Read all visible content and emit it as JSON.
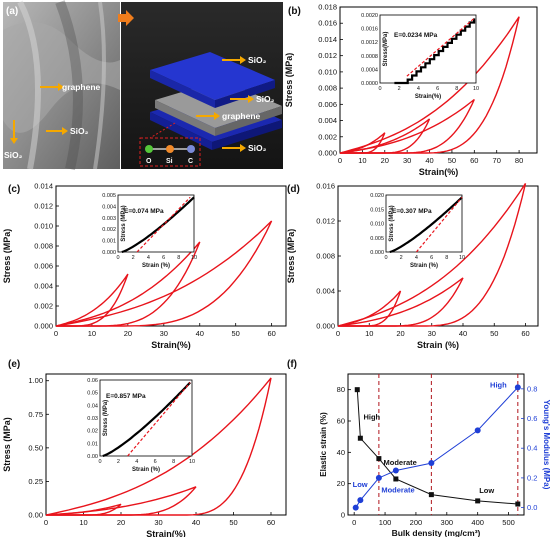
{
  "panel_a": {
    "label": "(a)",
    "labels": {
      "sem_graphene": "graphene",
      "sem_sio2_right": "SiO₂",
      "sem_sio2_left": "SiO₂",
      "model_sio2_top": "SiO₂",
      "model_graphene": "graphene",
      "model_sio2_mid": "SiO₂",
      "model_sio2_bottom": "SiO₂",
      "atom_o": "O",
      "atom_si": "Si",
      "atom_c": "C"
    },
    "colors": {
      "slab": "#2233cc",
      "graphene": "#8a8a8a",
      "arrow": "#f5a800",
      "o": "#55c83a",
      "si": "#f08a2a",
      "c": "#7a8ad8"
    }
  },
  "chart_data": [
    {
      "id": "b",
      "panel_label": "(b)",
      "type": "line",
      "xlabel": "Strain(%)",
      "ylabel": "Stress (MPa)",
      "xlim": [
        0,
        88
      ],
      "ylim": [
        0,
        0.018
      ],
      "xticks": [
        0,
        10,
        20,
        30,
        40,
        50,
        60,
        70,
        80
      ],
      "yticks": [
        0.0,
        0.002,
        0.004,
        0.006,
        0.008,
        0.01,
        0.012,
        0.014,
        0.016,
        0.018
      ],
      "ytick_labels": [
        "0.000",
        "0.002",
        "0.004",
        "0.006",
        "0.008",
        "0.010",
        "0.012",
        "0.014",
        "0.016",
        "0.018"
      ],
      "color": "#e8141c",
      "loops": [
        {
          "max_strain": 20,
          "max_stress": 0.0025,
          "residual": 9
        },
        {
          "max_strain": 40,
          "max_stress": 0.0042,
          "residual": 18
        },
        {
          "max_strain": 60,
          "max_stress": 0.0066,
          "residual": 26
        },
        {
          "max_strain": 80,
          "max_stress": 0.0168,
          "residual": 36
        }
      ],
      "inset": {
        "xlabel": "Strain(%)",
        "ylabel": "Stress(MPa)",
        "annotation": "E=0.0234 MPa",
        "xlim": [
          0,
          10
        ],
        "ylim": [
          0,
          0.002
        ],
        "xticks": [
          0,
          2,
          4,
          6,
          8,
          10
        ],
        "yticks": [
          0.0,
          0.0004,
          0.0008,
          0.0012,
          0.0016,
          0.002
        ],
        "ytick_labels": [
          "0.0000",
          "0.0004",
          "0.0008",
          "0.0012",
          "0.0016",
          "0.0020"
        ],
        "data_start": 1.5,
        "data_end": [
          9.8,
          0.0019
        ],
        "fit": [
          [
            2.8,
            0.0002
          ],
          [
            9.8,
            0.0019
          ]
        ],
        "stepped": true
      }
    },
    {
      "id": "c",
      "panel_label": "(c)",
      "type": "line",
      "xlabel": "Strain(%)",
      "ylabel": "Stress (MPa)",
      "xlim": [
        0,
        64
      ],
      "ylim": [
        0,
        0.014
      ],
      "xticks": [
        0,
        10,
        20,
        30,
        40,
        50,
        60
      ],
      "yticks": [
        0.0,
        0.002,
        0.004,
        0.006,
        0.008,
        0.01,
        0.012,
        0.014
      ],
      "ytick_labels": [
        "0.000",
        "0.002",
        "0.004",
        "0.006",
        "0.008",
        "0.010",
        "0.012",
        "0.014"
      ],
      "color": "#e8141c",
      "loops": [
        {
          "max_strain": 20,
          "max_stress": 0.0052,
          "residual": 4
        },
        {
          "max_strain": 40,
          "max_stress": 0.0084,
          "residual": 10
        },
        {
          "max_strain": 60,
          "max_stress": 0.0105,
          "residual": 16
        }
      ],
      "inset": {
        "xlabel": "Strain (%)",
        "ylabel": "Stress (MPa)",
        "annotation": "E=0.074 MPa",
        "xlim": [
          0,
          10
        ],
        "ylim": [
          0,
          0.005
        ],
        "xticks": [
          0,
          2,
          4,
          6,
          8,
          10
        ],
        "yticks": [
          0.0,
          0.001,
          0.002,
          0.003,
          0.004,
          0.005
        ],
        "ytick_labels": [
          "0.000",
          "0.001",
          "0.002",
          "0.003",
          "0.004",
          "0.005"
        ],
        "data_start": 0.5,
        "data_end": [
          10,
          0.0048
        ],
        "fit": [
          [
            2.5,
            0.0
          ],
          [
            9.5,
            0.0048
          ]
        ],
        "stepped": false
      }
    },
    {
      "id": "d",
      "panel_label": "(d)",
      "type": "line",
      "xlabel": "Strain (%)",
      "ylabel": "Stress (MPa)",
      "xlim": [
        0,
        64
      ],
      "ylim": [
        0,
        0.016
      ],
      "xticks": [
        0,
        10,
        20,
        30,
        40,
        50,
        60
      ],
      "yticks": [
        0.0,
        0.004,
        0.008,
        0.012,
        0.016
      ],
      "ytick_labels": [
        "0.000",
        "0.004",
        "0.008",
        "0.012",
        "0.016"
      ],
      "color": "#e8141c",
      "loops": [
        {
          "max_strain": 20,
          "max_stress": 0.004,
          "residual": 8
        },
        {
          "max_strain": 40,
          "max_stress": 0.0055,
          "residual": 16
        },
        {
          "max_strain": 60,
          "max_stress": 0.0163,
          "residual": 26
        }
      ],
      "inset": {
        "xlabel": "Strain (%)",
        "ylabel": "Stress (MPa)",
        "annotation": "E=0.307 MPa",
        "xlim": [
          0,
          10
        ],
        "ylim": [
          0,
          0.02
        ],
        "xticks": [
          0,
          2,
          4,
          6,
          8,
          10
        ],
        "yticks": [
          0.0,
          0.005,
          0.01,
          0.015,
          0.02
        ],
        "ytick_labels": [
          "0.000",
          "0.005",
          "0.010",
          "0.015",
          "0.020"
        ],
        "data_start": 0.5,
        "data_end": [
          10,
          0.0192
        ],
        "fit": [
          [
            4.0,
            0.0
          ],
          [
            10,
            0.0192
          ]
        ],
        "stepped": false
      }
    },
    {
      "id": "e",
      "panel_label": "(e)",
      "type": "line",
      "xlabel": "Strain(%)",
      "ylabel": "Stress (MPa)",
      "xlim": [
        0,
        64
      ],
      "ylim": [
        0,
        1.05
      ],
      "xticks": [
        0,
        10,
        20,
        30,
        40,
        50,
        60
      ],
      "yticks": [
        0.0,
        0.25,
        0.5,
        0.75,
        1.0
      ],
      "ytick_labels": [
        "0.00",
        "0.25",
        "0.50",
        "0.75",
        "1.00"
      ],
      "color": "#e8141c",
      "loops": [
        {
          "max_strain": 20,
          "max_stress": 0.08,
          "residual": 10
        },
        {
          "max_strain": 40,
          "max_stress": 0.21,
          "residual": 20
        },
        {
          "max_strain": 60,
          "max_stress": 1.02,
          "residual": 36
        }
      ],
      "inset": {
        "xlabel": "Strain (%)",
        "ylabel": "Stress (MPa)",
        "annotation": "E=0.857 MPa",
        "xlim": [
          0,
          10
        ],
        "ylim": [
          0,
          0.06
        ],
        "xticks": [
          0,
          2,
          4,
          6,
          8,
          10
        ],
        "yticks": [
          0.0,
          0.01,
          0.02,
          0.03,
          0.04,
          0.05,
          0.06
        ],
        "ytick_labels": [
          "0.00",
          "0.01",
          "0.02",
          "0.03",
          "0.04",
          "0.05",
          "0.06"
        ],
        "data_start": 0.3,
        "data_end": [
          9.8,
          0.058
        ],
        "fit": [
          [
            3.0,
            0.0
          ],
          [
            9.8,
            0.058
          ]
        ],
        "stepped": false
      }
    },
    {
      "id": "f",
      "panel_label": "(f)",
      "type": "scatter",
      "xlabel": "Bulk density (mg/cm³)",
      "ylabel_left": "Elastic strain (%)",
      "ylabel_right": "Young's Modulus (MPa)",
      "xlim": [
        -20,
        550
      ],
      "xticks": [
        0,
        100,
        200,
        300,
        400,
        500
      ],
      "ylim_left": [
        0,
        90
      ],
      "yticks_left": [
        0,
        20,
        40,
        60,
        80
      ],
      "ylim_right": [
        -0.05,
        0.9
      ],
      "yticks_right": [
        0.0,
        0.2,
        0.4,
        0.6,
        0.8
      ],
      "ytick_labels_right": [
        "0.0",
        "0.2",
        "0.4",
        "0.6",
        "0.8"
      ],
      "series": [
        {
          "axis": "left",
          "color": "#111111",
          "marker": "square",
          "x": [
            10,
            20,
            80,
            135,
            250,
            400,
            530
          ],
          "y": [
            80,
            49,
            36,
            23,
            13,
            9,
            7
          ]
        },
        {
          "axis": "right",
          "color": "#1f3fd6",
          "marker": "circle",
          "x": [
            5,
            20,
            80,
            135,
            250,
            400,
            530
          ],
          "y": [
            0.0,
            0.05,
            0.2,
            0.25,
            0.3,
            0.52,
            0.81
          ]
        }
      ],
      "dashed_x": [
        80,
        250,
        530
      ],
      "annotations": [
        {
          "text": "High",
          "x": 30,
          "y": 61,
          "axis": "left",
          "color": "#111111"
        },
        {
          "text": "Moderate",
          "x": 95,
          "y": 32,
          "axis": "left",
          "color": "#111111"
        },
        {
          "text": "Low",
          "x": 405,
          "y": 14,
          "axis": "left",
          "color": "#111111"
        },
        {
          "text": "Low",
          "x": -5,
          "y": 0.14,
          "axis": "right",
          "color": "#1f3fd6"
        },
        {
          "text": "Moderate",
          "x": 88,
          "y": 0.1,
          "axis": "right",
          "color": "#1f3fd6"
        },
        {
          "text": "High",
          "x": 440,
          "y": 0.81,
          "axis": "right",
          "color": "#1f3fd6"
        }
      ]
    }
  ]
}
